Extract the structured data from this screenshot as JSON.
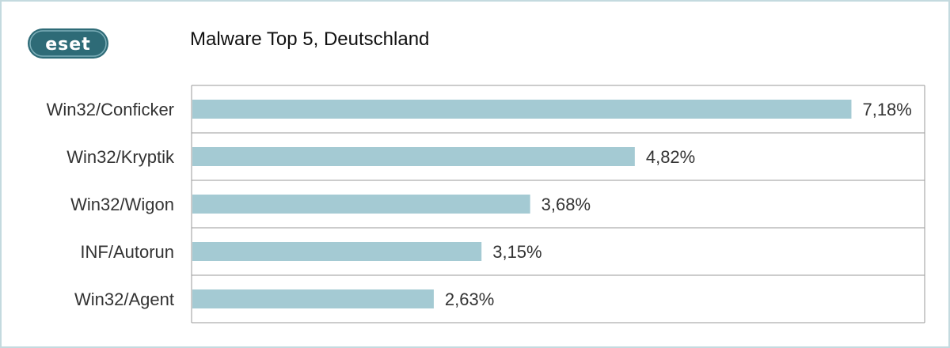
{
  "brand": {
    "logo_text": "eset",
    "logo_color": "#2e6b77"
  },
  "chart_data": {
    "type": "bar",
    "orientation": "horizontal",
    "title": "Malware Top 5, Deutschland",
    "categories": [
      "Win32/Conficker",
      "Win32/Kryptik",
      "Win32/Wigon",
      "INF/Autorun",
      "Win32/Agent"
    ],
    "values": [
      7.18,
      4.82,
      3.68,
      3.15,
      2.63
    ],
    "value_labels": [
      "7,18%",
      "4,82%",
      "3,68%",
      "3,15%",
      "2,63%"
    ],
    "unit": "%",
    "xlim": [
      0,
      8
    ],
    "bar_color": "#a4cad3",
    "grid": true,
    "legend": "none"
  }
}
